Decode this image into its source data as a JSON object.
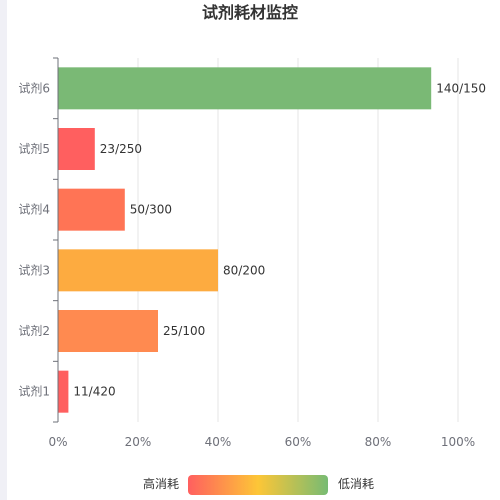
{
  "chart_data": {
    "type": "bar",
    "orientation": "horizontal",
    "title": "试剂耗材监控",
    "categories": [
      "试剂1",
      "试剂2",
      "试剂3",
      "试剂4",
      "试剂5",
      "试剂6"
    ],
    "values": [
      2.6,
      25,
      40,
      16.7,
      9.2,
      93.3
    ],
    "data_labels": [
      "11/420",
      "25/100",
      "80/200",
      "50/300",
      "23/250",
      "140/150"
    ],
    "xlim": [
      0,
      100
    ],
    "x_ticks": [
      "0%",
      "20%",
      "40%",
      "60%",
      "80%",
      "100%"
    ],
    "grid": "vertical",
    "color_scale": {
      "low_label": "高消耗",
      "high_label": "低消耗",
      "colors": [
        "#ff5f5f",
        "#fdc637",
        "#77bb73"
      ]
    },
    "bar_colors": [
      "#ff5f5f",
      "#ff8a50",
      "#fdab40",
      "#ff7455",
      "#ff5f5f",
      "#7ab975"
    ]
  }
}
